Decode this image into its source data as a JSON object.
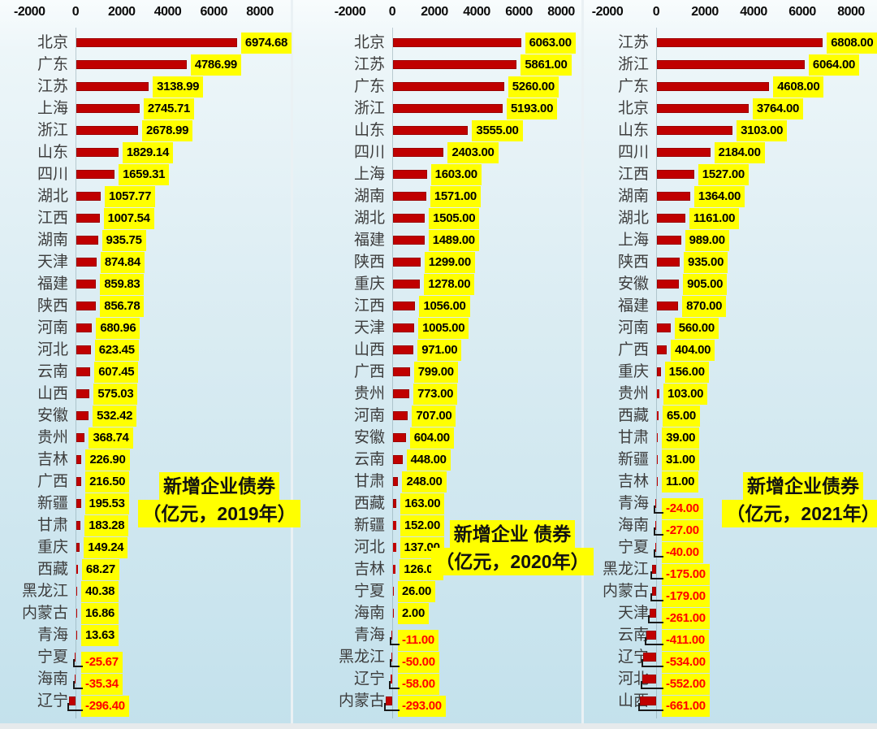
{
  "colors": {
    "bar": "#C00000",
    "label_bg": "#FFFF00",
    "negative_text": "#FF0000",
    "positive_text": "#000000",
    "category_text": "#3D3D3D"
  },
  "chart_data": [
    {
      "type": "bar",
      "orientation": "horizontal",
      "year": "2019",
      "unit": "亿元",
      "title": "新增企业债券（亿元，2019年）",
      "title_lines": [
        "新增企业债券",
        "（亿元，2019年）"
      ],
      "xlim": [
        -2000,
        8000
      ],
      "x_ticks": [
        -2000,
        0,
        2000,
        4000,
        6000,
        8000
      ],
      "categories": [
        "北京",
        "广东",
        "江苏",
        "上海",
        "浙江",
        "山东",
        "四川",
        "湖北",
        "江西",
        "湖南",
        "天津",
        "福建",
        "陕西",
        "河南",
        "河北",
        "云南",
        "山西",
        "安徽",
        "贵州",
        "吉林",
        "广西",
        "新疆",
        "甘肃",
        "重庆",
        "西藏",
        "黑龙江",
        "内蒙古",
        "青海",
        "宁夏",
        "海南",
        "辽宁"
      ],
      "values": [
        6974.68,
        4786.99,
        3138.99,
        2745.71,
        2678.99,
        1829.14,
        1659.31,
        1057.77,
        1007.54,
        935.75,
        874.84,
        859.83,
        856.78,
        680.96,
        623.45,
        607.45,
        575.03,
        532.42,
        368.74,
        226.9,
        216.5,
        195.53,
        183.28,
        149.24,
        68.27,
        40.38,
        16.86,
        13.63,
        -25.67,
        -35.34,
        -296.4
      ],
      "value_labels": [
        "6974.68",
        "4786.99",
        "3138.99",
        "2745.71",
        "2678.99",
        "1829.14",
        "1659.31",
        "1057.77",
        "1007.54",
        "935.75",
        "874.84",
        "859.83",
        "856.78",
        "680.96",
        "623.45",
        "607.45",
        "575.03",
        "532.42",
        "368.74",
        "226.90",
        "216.50",
        "195.53",
        "183.28",
        "149.24",
        "68.27",
        "40.38",
        "16.86",
        "13.63",
        "-25.67",
        "-35.34",
        "-296.40"
      ]
    },
    {
      "type": "bar",
      "orientation": "horizontal",
      "year": "2020",
      "unit": "亿元",
      "title": "新增企业 债券（亿元，2020年）",
      "title_lines": [
        "新增企业 债券",
        "（亿元，2020年）"
      ],
      "xlim": [
        -2000,
        8000
      ],
      "x_ticks": [
        -2000,
        0,
        2000,
        4000,
        6000,
        8000
      ],
      "categories": [
        "北京",
        "江苏",
        "广东",
        "浙江",
        "山东",
        "四川",
        "上海",
        "湖南",
        "湖北",
        "福建",
        "陕西",
        "重庆",
        "江西",
        "天津",
        "山西",
        "广西",
        "贵州",
        "河南",
        "安徽",
        "云南",
        "甘肃",
        "西藏",
        "新疆",
        "河北",
        "吉林",
        "宁夏",
        "海南",
        "青海",
        "黑龙江",
        "辽宁",
        "内蒙古"
      ],
      "values": [
        6063,
        5861,
        5260,
        5193,
        3555,
        2403,
        1603,
        1571,
        1505,
        1489,
        1299,
        1278,
        1056,
        1005,
        971,
        799,
        773,
        707,
        604,
        448,
        248,
        163,
        152,
        137,
        126,
        26,
        2,
        -11,
        -50,
        -58,
        -293
      ],
      "value_labels": [
        "6063.00",
        "5861.00",
        "5260.00",
        "5193.00",
        "3555.00",
        "2403.00",
        "1603.00",
        "1571.00",
        "1505.00",
        "1489.00",
        "1299.00",
        "1278.00",
        "1056.00",
        "1005.00",
        "971.00",
        "799.00",
        "773.00",
        "707.00",
        "604.00",
        "448.00",
        "248.00",
        "163.00",
        "152.00",
        "137.00",
        "126.00",
        "26.00",
        "2.00",
        "-11.00",
        "-50.00",
        "-58.00",
        "-293.00"
      ]
    },
    {
      "type": "bar",
      "orientation": "horizontal",
      "year": "2021",
      "unit": "亿元",
      "title": "新增企业债券（亿元，2021年）",
      "title_lines": [
        "新增企业债券",
        "（亿元，2021年）"
      ],
      "xlim": [
        -2000,
        8000
      ],
      "x_ticks": [
        -2000,
        0,
        2000,
        4000,
        6000,
        8000
      ],
      "categories": [
        "江苏",
        "浙江",
        "广东",
        "北京",
        "山东",
        "四川",
        "江西",
        "湖南",
        "湖北",
        "上海",
        "陕西",
        "安徽",
        "福建",
        "河南",
        "广西",
        "重庆",
        "贵州",
        "西藏",
        "甘肃",
        "新疆",
        "吉林",
        "青海",
        "海南",
        "宁夏",
        "黑龙江",
        "内蒙古",
        "天津",
        "云南",
        "辽宁",
        "河北",
        "山西"
      ],
      "values": [
        6808,
        6064,
        4608,
        3764,
        3103,
        2184,
        1527,
        1364,
        1161,
        989,
        935,
        905,
        870,
        560,
        404,
        156,
        103,
        65,
        39,
        31,
        11,
        -24,
        -27,
        -40,
        -175,
        -179,
        -261,
        -411,
        -534,
        -552,
        -661
      ],
      "value_labels": [
        "6808.00",
        "6064.00",
        "4608.00",
        "3764.00",
        "3103.00",
        "2184.00",
        "1527.00",
        "1364.00",
        "1161.00",
        "989.00",
        "935.00",
        "905.00",
        "870.00",
        "560.00",
        "404.00",
        "156.00",
        "103.00",
        "65.00",
        "39.00",
        "31.00",
        "11.00",
        "-24.00",
        "-27.00",
        "-40.00",
        "-175.00",
        "-179.00",
        "-261.00",
        "-411.00",
        "-534.00",
        "-552.00",
        "-661.00"
      ]
    }
  ]
}
